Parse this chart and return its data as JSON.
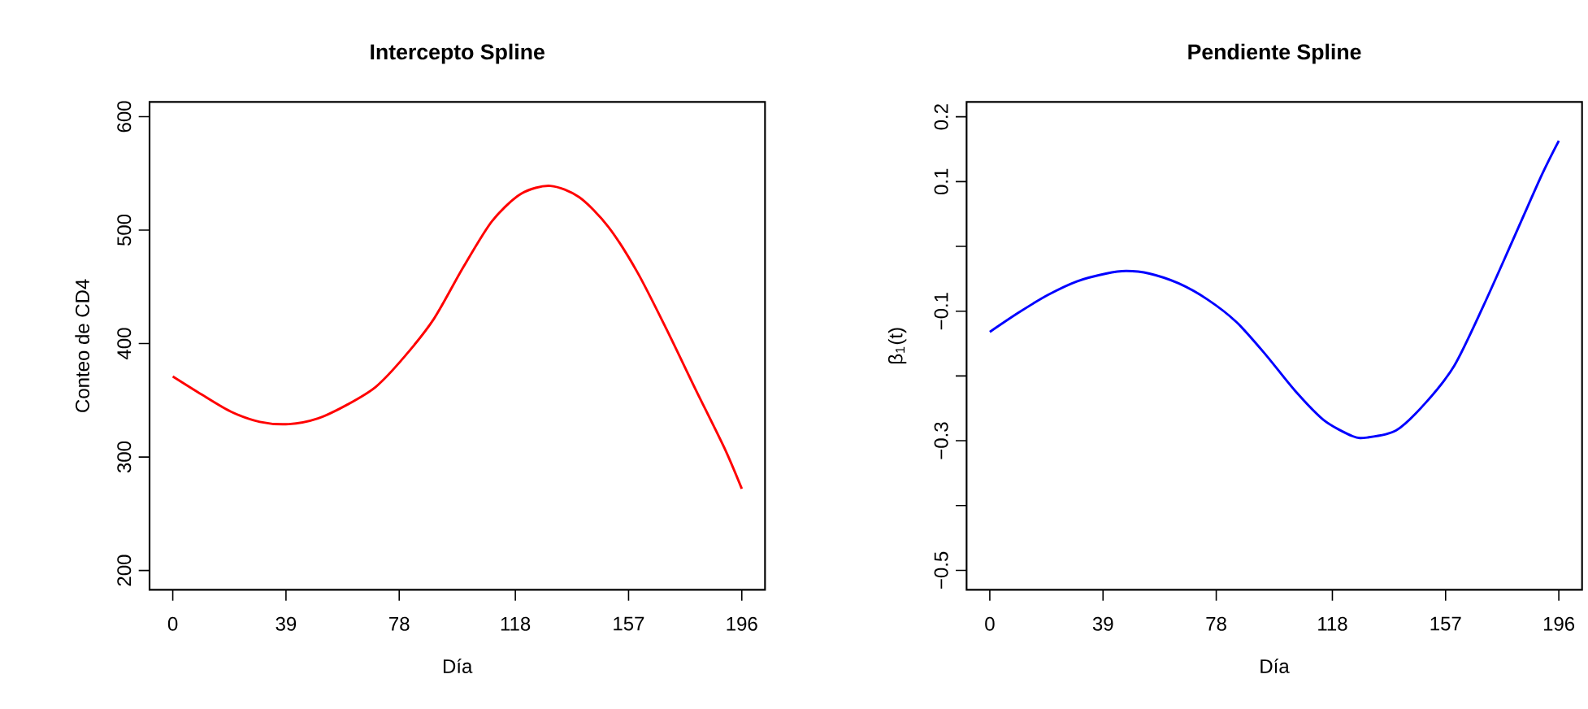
{
  "chart_data": [
    {
      "type": "line",
      "title": "Intercepto Spline",
      "xlabel": "Día",
      "ylabel": "Conteo de CD4",
      "xlim": [
        -8,
        204
      ],
      "ylim": [
        183,
        613
      ],
      "xticks": [
        0,
        39,
        78,
        118,
        157,
        196
      ],
      "yticks": [
        200,
        300,
        400,
        500,
        600
      ],
      "x": [
        0,
        10,
        20,
        30,
        40,
        50,
        60,
        70,
        80,
        90,
        100,
        110,
        120,
        130,
        140,
        150,
        160,
        170,
        180,
        190,
        196
      ],
      "series": [
        {
          "color": "#ff0000",
          "values": [
            371,
            355,
            340,
            331,
            329,
            334,
            346,
            362,
            389,
            422,
            467,
            508,
            532,
            539,
            529,
            503,
            463,
            413,
            360,
            308,
            272
          ]
        }
      ]
    },
    {
      "type": "line",
      "title": "Pendiente Spline",
      "xlabel": "Día",
      "ylabel": "β$_{1}$(t)",
      "xlim": [
        -8,
        204
      ],
      "ylim": [
        -0.53,
        0.223
      ],
      "xticks": [
        0,
        39,
        78,
        118,
        157,
        196
      ],
      "yticks": [
        0.2,
        0.1,
        {
          "value": 0,
          "label": null
        },
        {
          "value": -0.1,
          "label": "−0.1"
        },
        {
          "value": -0.2,
          "label": null
        },
        {
          "value": -0.3,
          "label": "−0.3"
        },
        {
          "value": -0.4,
          "label": null
        },
        {
          "value": -0.5,
          "label": "−0.5"
        }
      ],
      "x": [
        0,
        10,
        20,
        30,
        40,
        47,
        55,
        65,
        75,
        85,
        95,
        105,
        115,
        125,
        130,
        140,
        150,
        160,
        170,
        180,
        190,
        196
      ],
      "series": [
        {
          "color": "#0000ff",
          "values": [
            -0.132,
            -0.102,
            -0.075,
            -0.054,
            -0.042,
            -0.038,
            -0.042,
            -0.057,
            -0.082,
            -0.117,
            -0.167,
            -0.222,
            -0.268,
            -0.293,
            -0.295,
            -0.284,
            -0.242,
            -0.184,
            -0.092,
            0.008,
            0.109,
            0.163
          ]
        }
      ]
    }
  ]
}
